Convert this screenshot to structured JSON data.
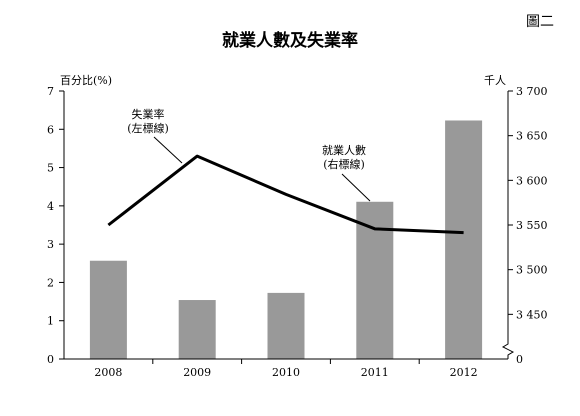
{
  "figure_label": "圖二",
  "chart_data": {
    "type": "bar+line",
    "title": "就業人數及失業率",
    "categories": [
      "2008",
      "2009",
      "2010",
      "2011",
      "2012"
    ],
    "left_axis": {
      "label": "百分比(%)",
      "ticks": [
        "0",
        "1",
        "2",
        "3",
        "4",
        "5",
        "6",
        "7"
      ],
      "range": [
        0,
        7
      ]
    },
    "right_axis": {
      "label": "千人",
      "ticks": [
        "0",
        "3 450",
        "3 500",
        "3 550",
        "3 600",
        "3 650",
        "3 700"
      ],
      "tick_values": [
        null,
        3450,
        3500,
        3550,
        3600,
        3650,
        3700
      ],
      "range": [
        3400,
        3700
      ],
      "broken_axis": true
    },
    "series": [
      {
        "name": "就業人數",
        "name_suffix": "(右標線)",
        "kind": "bar",
        "axis": "right",
        "color": "#999999",
        "values": [
          3510,
          3466,
          3474,
          3576,
          3667
        ]
      },
      {
        "name": "失業率",
        "name_suffix": "(左標線)",
        "kind": "line",
        "axis": "left",
        "color": "#000000",
        "values": [
          3.5,
          5.3,
          4.3,
          3.4,
          3.3
        ]
      }
    ],
    "grid": false
  }
}
